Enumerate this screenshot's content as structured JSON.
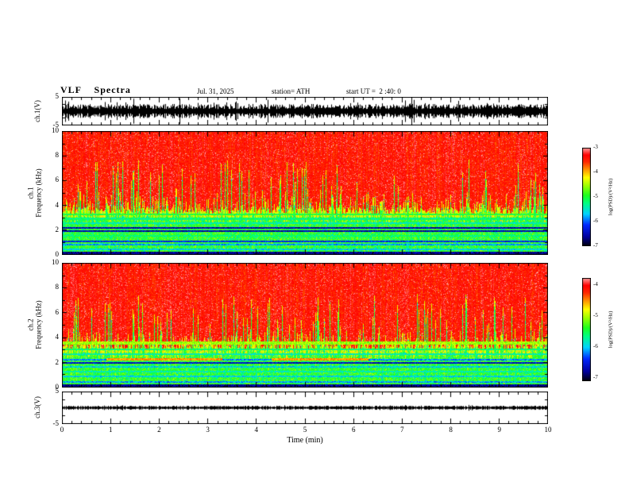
{
  "header": {
    "title": "VLF  Spectra",
    "date": "Jul. 31, 2025",
    "station": "station= ATH",
    "start_ut": "start UT =  2 :40: 0"
  },
  "xaxis": {
    "label": "Time (min)",
    "range_min": [
      0,
      10
    ],
    "ticks": [
      "0",
      "1",
      "2",
      "3",
      "4",
      "5",
      "6",
      "7",
      "8",
      "9",
      "10"
    ]
  },
  "chart_data": [
    {
      "type": "line",
      "panel": "ch1_waveform",
      "ylabel": "ch.1(V)",
      "ylim": [
        -5,
        5
      ],
      "ytick_labels": [
        "5",
        "-5"
      ],
      "amplitude_v": 1.8,
      "spike_amplitude_v": 2.2,
      "signal": "dense stationary broadband noise, typical envelope ±1-3 V with spikes to ~±4.5 V over full 0-10 min"
    },
    {
      "type": "heatmap",
      "panel": "ch1_spectrogram",
      "ylabel_lines": [
        "ch.1",
        "Frequency (kHz)"
      ],
      "ylim_khz": [
        0,
        10
      ],
      "ytick_labels": [
        "10",
        "8",
        "6",
        "4",
        "2",
        "0"
      ],
      "xlim_min": [
        0,
        10
      ],
      "psd_log_range": [
        -7,
        -3
      ],
      "colorbar_ticks": [
        "-3",
        "-4",
        "-5",
        "-6",
        "-7"
      ],
      "colorbar_label": "log(PSD)/(V²/Hz)",
      "structure": {
        "red_boundary_khz": 3.6,
        "description": "saturated red (~-3.5) above ~3.6 kHz with vertical green/yellow streaks reaching up to ~8 kHz; speckled green (~-5) below with yellow transition band at the boundary",
        "lines": [
          {
            "khz": 0.15,
            "hw": 0.12,
            "level": 0.1
          },
          {
            "khz": 0.5,
            "hw": 0.07,
            "level": 0.35
          },
          {
            "khz": 0.85,
            "hw": 0.06,
            "level": 0.3
          },
          {
            "khz": 1.1,
            "hw": 0.07,
            "level": 0.2
          },
          {
            "khz": 1.55,
            "hw": 0.06,
            "level": 0.45
          },
          {
            "khz": 1.95,
            "hw": 0.07,
            "level": 0.12
          },
          {
            "khz": 2.2,
            "hw": 0.07,
            "level": 0.12
          },
          {
            "khz": 2.6,
            "hw": 0.05,
            "level": 0.4
          },
          {
            "khz": 2.95,
            "hw": 0.07,
            "level": 0.45
          },
          {
            "khz": 3.3,
            "hw": 0.05,
            "level": 0.5
          }
        ]
      }
    },
    {
      "type": "heatmap",
      "panel": "ch2_spectrogram",
      "ylabel_lines": [
        "ch.2",
        "Frequency (kHz)"
      ],
      "ylim_khz": [
        0,
        10
      ],
      "ytick_labels": [
        "10",
        "8",
        "6",
        "4",
        "2",
        "0"
      ],
      "xlim_min": [
        0,
        10
      ],
      "psd_log_range": [
        -7,
        -4
      ],
      "colorbar_ticks": [
        "-4",
        "-5",
        "-6",
        "-7"
      ],
      "colorbar_label": "log(PSD)/(V²/Hz)",
      "structure": {
        "red_boundary_khz": 3.3,
        "description": "same pattern as ch.1 but red zone starts ~3.3 kHz; yellowish band near 3.6 kHz; intermittent orange band near 2.3 kHz",
        "lines": [
          {
            "khz": 0.15,
            "hw": 0.12,
            "level": 0.1
          },
          {
            "khz": 0.5,
            "hw": 0.06,
            "level": 0.3
          },
          {
            "khz": 0.9,
            "hw": 0.06,
            "level": 0.35
          },
          {
            "khz": 1.3,
            "hw": 0.05,
            "level": 0.4
          },
          {
            "khz": 1.7,
            "hw": 0.06,
            "level": 0.35
          },
          {
            "khz": 2.0,
            "hw": 0.07,
            "level": 0.15
          },
          {
            "khz": 2.25,
            "hw": 0.07,
            "level": 0.28
          },
          {
            "khz": 2.7,
            "hw": 0.05,
            "level": 0.4
          },
          {
            "khz": 3.1,
            "hw": 0.05,
            "level": 0.45
          },
          {
            "khz": 3.6,
            "hw": 0.1,
            "level": 0.62
          }
        ],
        "orange_band": {
          "khz": 2.3,
          "hw": 0.12,
          "level": 0.78,
          "segments_min": [
            [
              0.9,
              3.3
            ],
            [
              4.3,
              6.3
            ]
          ]
        }
      }
    },
    {
      "type": "line",
      "panel": "ch3_waveform",
      "ylabel": "ch.3(V)",
      "ylim": [
        -5,
        5
      ],
      "ytick_labels": [
        "5",
        "-5"
      ],
      "amplitude_v": 0.45,
      "spike_amplitude_v": 0.3,
      "signal": "flat thick line at 0 V (±0.4 V), no activity"
    }
  ],
  "colors": {
    "background": "#ffffff",
    "axis": "#000000",
    "colormap": [
      {
        "t": 0.0,
        "hex": "#000000"
      },
      {
        "t": 0.1,
        "hex": "#0000a0"
      },
      {
        "t": 0.22,
        "hex": "#0028ff"
      },
      {
        "t": 0.33,
        "hex": "#00d2ff"
      },
      {
        "t": 0.44,
        "hex": "#00ff82"
      },
      {
        "t": 0.52,
        "hex": "#1eff1e"
      },
      {
        "t": 0.62,
        "hex": "#a0ff00"
      },
      {
        "t": 0.7,
        "hex": "#ffff00"
      },
      {
        "t": 0.78,
        "hex": "#ff9600"
      },
      {
        "t": 0.86,
        "hex": "#ff2800"
      },
      {
        "t": 0.93,
        "hex": "#ff0000"
      },
      {
        "t": 1.0,
        "hex": "#ffa0a0"
      }
    ]
  }
}
